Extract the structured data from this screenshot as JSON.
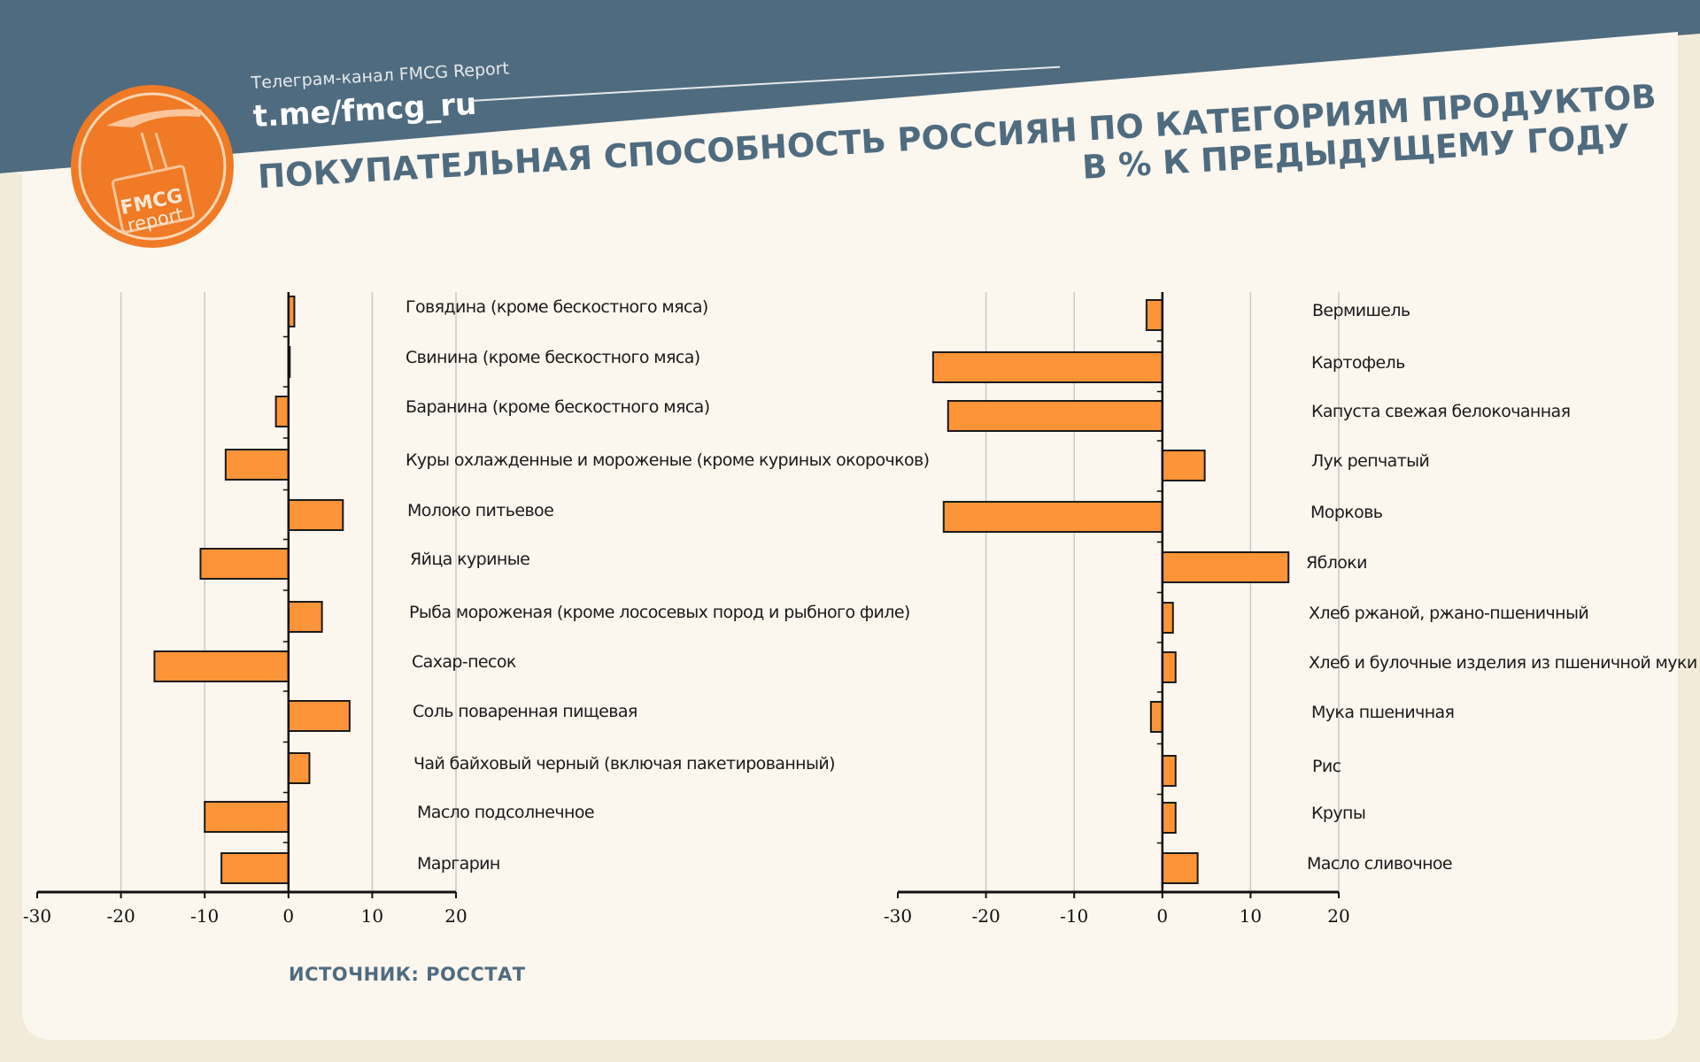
{
  "header": {
    "subtitle": "Телеграм-канал FMCG Report",
    "url": "t.me/fmcg_ru",
    "title_line1": "ПОКУПАТЕЛЬНАЯ СПОСОБНОСТЬ РОССИЯН ПО КАТЕГОРИЯМ ПРОДУКТОВ",
    "title_line2": "В % К ПРЕДЫДУЩЕМУ ГОДУ"
  },
  "logo": {
    "line1": "FMCG",
    "line2": "report"
  },
  "source": "ИСТОЧНИК: РОССТАТ",
  "colors": {
    "header_bg": "#4f6b7f",
    "card_bg": "#fbf6ee",
    "page_bg": "#f3ebd9",
    "bar_fill": "#fd9437",
    "bar_stroke": "#1a1a1a",
    "logo_orange": "#f07a26",
    "title_text": "#4f6b7f"
  },
  "chart_data": [
    {
      "type": "bar",
      "orientation": "horizontal",
      "xlim": [
        -30,
        20
      ],
      "ticks": [
        -30,
        -20,
        -10,
        0,
        10,
        20
      ],
      "tick_labels": [
        "-30",
        "-20",
        "-10",
        "0",
        "10",
        "20"
      ],
      "categories": [
        "Говядина (кроме бескостного мяса)",
        "Свинина (кроме бескостного мяса)",
        "Баранина (кроме бескостного мяса)",
        "Куры охлажденные и мороженые (кроме куриных окорочков)",
        "Молоко питьевое",
        "Яйца куриные",
        "Рыба мороженая (кроме лососевых пород и рыбного филе)",
        "Сахар-песок",
        "Соль поваренная пищевая",
        "Чай байховый черный (включая пакетированный)",
        "Масло подсолнечное",
        "Маргарин"
      ],
      "values": [
        0.7,
        0.1,
        -1.5,
        -7.5,
        6.5,
        -10.5,
        4.0,
        -16.0,
        7.3,
        2.5,
        -10.0,
        -8.0
      ]
    },
    {
      "type": "bar",
      "orientation": "horizontal",
      "xlim": [
        -30,
        20
      ],
      "ticks": [
        -30,
        -20,
        -10,
        0,
        10,
        20
      ],
      "tick_labels": [
        "-30",
        "-20",
        "-10",
        "0",
        "10",
        "20"
      ],
      "categories": [
        "Вермишель",
        "Картофель",
        "Капуста свежая белокочанная",
        "Лук репчатый",
        "Морковь",
        "Яблоки",
        "Хлеб ржаной, ржано-пшеничный",
        "Хлеб и булочные изделия из пшеничной муки",
        "Мука пшеничная",
        "Рис",
        "Крупы",
        "Масло сливочное"
      ],
      "values": [
        -1.8,
        -26.0,
        -24.3,
        4.8,
        -24.8,
        14.3,
        1.2,
        1.5,
        -1.3,
        1.5,
        1.5,
        4.0
      ]
    }
  ]
}
